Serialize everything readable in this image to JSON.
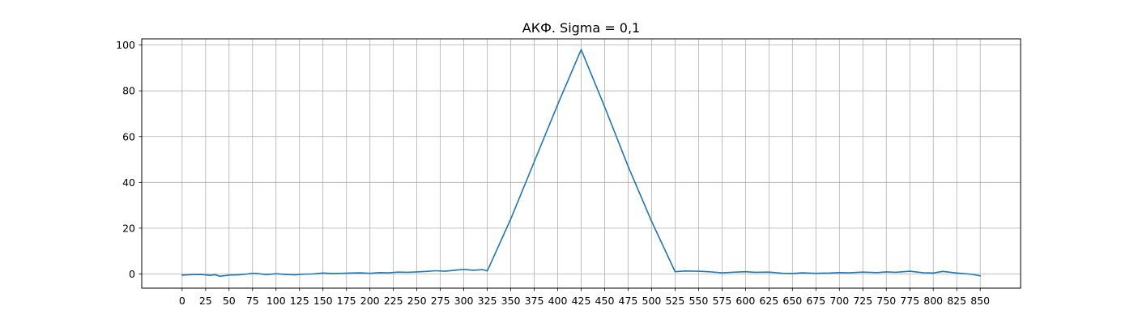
{
  "chart_data": {
    "type": "line",
    "title": "АКФ. Sigma = 0,1",
    "xlabel": "",
    "ylabel": "",
    "xlim": [
      -43,
      893
    ],
    "ylim": [
      -6.2,
      102.7
    ],
    "x_ticks": [
      0,
      25,
      50,
      75,
      100,
      125,
      150,
      175,
      200,
      225,
      250,
      275,
      300,
      325,
      350,
      375,
      400,
      425,
      450,
      475,
      500,
      525,
      550,
      575,
      600,
      625,
      650,
      675,
      700,
      725,
      750,
      775,
      800,
      825,
      850
    ],
    "x_tick_labels": [
      "0",
      "25",
      "50",
      "75",
      "100",
      "125",
      "150",
      "175",
      "200",
      "225",
      "250",
      "275",
      "300",
      "325",
      "350",
      "375",
      "400",
      "425",
      "450",
      "475",
      "500",
      "525",
      "550",
      "575",
      "600",
      "625",
      "650",
      "675",
      "700",
      "725",
      "750",
      "775",
      "800",
      "825",
      "850"
    ],
    "y_ticks": [
      0,
      20,
      40,
      60,
      80,
      100
    ],
    "y_tick_labels": [
      "0",
      "20",
      "40",
      "60",
      "80",
      "100"
    ],
    "grid": true,
    "line_color": "#1f77b4",
    "grid_color": "#b0b0b0",
    "series": [
      {
        "x": [
          0,
          10,
          20,
          30,
          35,
          40,
          50,
          60,
          70,
          75,
          80,
          90,
          100,
          110,
          120,
          130,
          140,
          150,
          160,
          170,
          180,
          190,
          200,
          210,
          220,
          230,
          240,
          250,
          260,
          270,
          280,
          290,
          300,
          310,
          320,
          325,
          350,
          375,
          400,
          425,
          450,
          475,
          500,
          525,
          535,
          550,
          560,
          575,
          590,
          600,
          610,
          625,
          640,
          650,
          660,
          675,
          690,
          700,
          710,
          725,
          740,
          750,
          760,
          775,
          790,
          800,
          810,
          825,
          840,
          850
        ],
        "y": [
          -0.5,
          -0.3,
          -0.2,
          -0.6,
          -0.3,
          -1.0,
          -0.5,
          -0.4,
          0.0,
          0.3,
          0.2,
          -0.3,
          0.1,
          -0.2,
          -0.4,
          -0.1,
          0.0,
          0.4,
          0.2,
          0.3,
          0.4,
          0.5,
          0.3,
          0.6,
          0.5,
          0.8,
          0.7,
          0.9,
          1.1,
          1.4,
          1.2,
          1.6,
          2.0,
          1.6,
          1.9,
          1.3,
          24.0,
          49.0,
          74.0,
          98.0,
          73.0,
          47.0,
          23.0,
          1.0,
          1.3,
          1.2,
          1.0,
          0.5,
          0.8,
          1.0,
          0.7,
          0.8,
          0.3,
          0.2,
          0.5,
          0.3,
          0.4,
          0.6,
          0.5,
          0.8,
          0.6,
          0.9,
          0.7,
          1.2,
          0.5,
          0.4,
          1.1,
          0.4,
          -0.1,
          -0.8
        ]
      }
    ]
  }
}
